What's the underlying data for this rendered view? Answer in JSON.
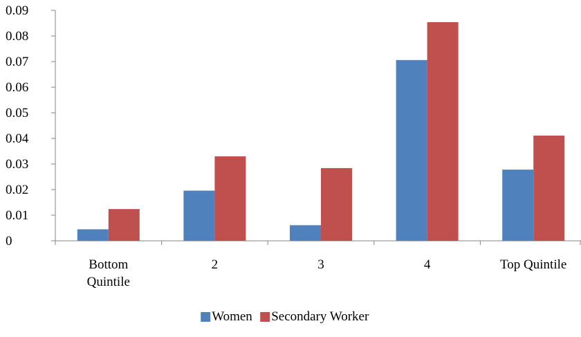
{
  "chart_data": {
    "type": "bar",
    "categories": [
      [
        "Bottom",
        "Quintile"
      ],
      [
        "2"
      ],
      [
        "3"
      ],
      [
        "4"
      ],
      [
        "Top Quintile"
      ]
    ],
    "series": [
      {
        "name": "Women",
        "values": [
          0.0045,
          0.0196,
          0.0061,
          0.0706,
          0.0278
        ],
        "color": "#4F81BD"
      },
      {
        "name": "Secondary Worker",
        "values": [
          0.0124,
          0.033,
          0.0284,
          0.0854,
          0.0411
        ],
        "color": "#C0504D"
      }
    ],
    "yticks": [
      "0",
      "0.01",
      "0.02",
      "0.03",
      "0.04",
      "0.05",
      "0.06",
      "0.07",
      "0.08",
      "0.09"
    ],
    "ylim": [
      0,
      0.09
    ],
    "grid": false,
    "legend": "bottom"
  }
}
